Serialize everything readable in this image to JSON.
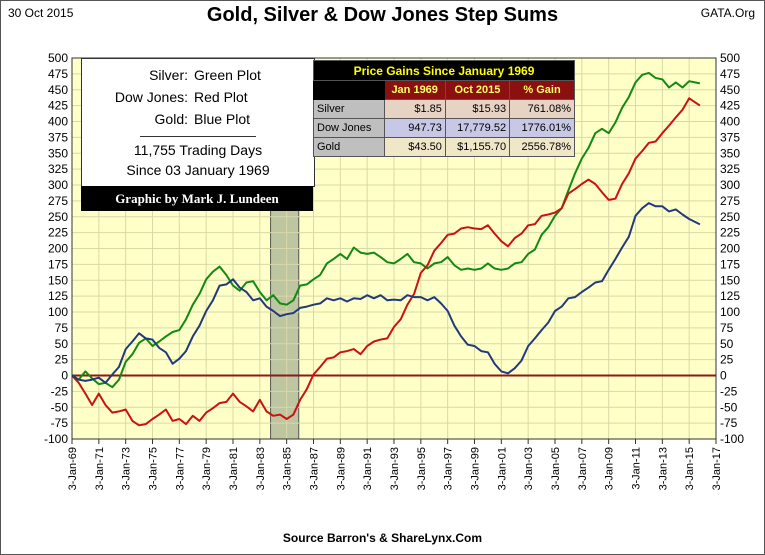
{
  "header": {
    "date": "30 Oct 2015",
    "title": "Gold, Silver & Dow Jones Step Sums",
    "site": "GATA.Org",
    "source": "Source Barron's & ShareLynx.Com"
  },
  "legend": {
    "rows": [
      {
        "name": "Silver:",
        "plot": "Green Plot"
      },
      {
        "name": "Dow Jones:",
        "plot": "Red Plot"
      },
      {
        "name": "Gold:",
        "plot": "Blue Plot"
      }
    ],
    "note_line1": "11,755 Trading Days",
    "note_line2": "Since 03 January 1969",
    "credit": "Graphic by Mark J. Lundeen"
  },
  "table": {
    "title": "Price Gains Since January 1969",
    "col1": "Jan 1969",
    "col2": "Oct 2015",
    "col3": "% Gain",
    "rows": [
      {
        "name": "Silver",
        "jan1969": "$1.85",
        "oct2015": "$15.93",
        "gain": "761.08%"
      },
      {
        "name": "Dow Jones",
        "jan1969": "947.73",
        "oct2015": "17,779.52",
        "gain": "1776.01%"
      },
      {
        "name": "Gold",
        "jan1969": "$43.50",
        "oct2015": "$1,155.70",
        "gain": "2556.78%"
      }
    ]
  },
  "colors": {
    "plot_bg": "#ffffc8",
    "grid": "#d9d9a8",
    "silver": "#118a11",
    "dow": "#cc1111",
    "gold": "#223a7a",
    "zero_line": "#8b1a1a",
    "highlight": "#9aa88a"
  },
  "chart_data": {
    "type": "line",
    "ylim": [
      -100,
      500
    ],
    "y_ticks": [
      -100,
      -75,
      -50,
      -25,
      0,
      25,
      50,
      75,
      100,
      125,
      150,
      175,
      200,
      225,
      250,
      275,
      300,
      325,
      350,
      375,
      400,
      425,
      450,
      475,
      500
    ],
    "x_ticks": [
      "3-Jan-69",
      "3-Jan-71",
      "3-Jan-73",
      "3-Jan-75",
      "3-Jan-77",
      "3-Jan-79",
      "3-Jan-81",
      "3-Jan-83",
      "3-Jan-85",
      "3-Jan-87",
      "3-Jan-89",
      "3-Jan-91",
      "3-Jan-93",
      "3-Jan-95",
      "3-Jan-97",
      "3-Jan-99",
      "3-Jan-01",
      "3-Jan-03",
      "3-Jan-05",
      "3-Jan-07",
      "3-Jan-09",
      "3-Jan-11",
      "3-Jan-13",
      "3-Jan-15",
      "3-Jan-17"
    ],
    "xlim": [
      1969,
      2017
    ],
    "highlight_span": [
      1983.8,
      1985.9
    ],
    "grid": true,
    "series": [
      {
        "key": "silver",
        "x": [
          1969,
          1969.5,
          1970,
          1970.5,
          1971,
          1971.5,
          1972,
          1972.5,
          1973,
          1973.5,
          1974,
          1974.5,
          1975,
          1975.5,
          1976,
          1976.5,
          1977,
          1977.5,
          1978,
          1978.5,
          1979,
          1979.5,
          1980,
          1980.5,
          1981,
          1981.5,
          1982,
          1982.5,
          1983,
          1983.5,
          1984,
          1984.5,
          1985,
          1985.5,
          1986,
          1986.5,
          1987,
          1987.5,
          1988,
          1988.5,
          1989,
          1989.5,
          1990,
          1990.5,
          1991,
          1991.5,
          1992,
          1992.5,
          1993,
          1993.5,
          1994,
          1994.5,
          1995,
          1995.5,
          1996,
          1996.5,
          1997,
          1997.5,
          1998,
          1998.5,
          1999,
          1999.5,
          2000,
          2000.5,
          2001,
          2001.5,
          2002,
          2002.5,
          2003,
          2003.5,
          2004,
          2004.5,
          2005,
          2005.5,
          2006,
          2006.5,
          2007,
          2007.5,
          2008,
          2008.5,
          2009,
          2009.5,
          2010,
          2010.5,
          2011,
          2011.5,
          2012,
          2012.5,
          2013,
          2013.5,
          2014,
          2014.5,
          2015,
          2015.8
        ],
        "y": [
          0,
          -5,
          5,
          -3,
          -15,
          -10,
          -20,
          -5,
          20,
          35,
          50,
          60,
          45,
          55,
          60,
          70,
          70,
          90,
          110,
          130,
          150,
          165,
          170,
          160,
          140,
          135,
          145,
          150,
          130,
          120,
          125,
          115,
          110,
          120,
          140,
          145,
          150,
          160,
          175,
          185,
          190,
          185,
          200,
          195,
          190,
          195,
          185,
          180,
          175,
          185,
          190,
          180,
          175,
          170,
          175,
          180,
          185,
          175,
          165,
          170,
          165,
          170,
          175,
          170,
          165,
          170,
          175,
          180,
          190,
          200,
          220,
          235,
          250,
          265,
          290,
          320,
          340,
          360,
          380,
          390,
          380,
          400,
          420,
          440,
          460,
          475,
          475,
          470,
          465,
          455,
          460,
          455,
          462,
          460
        ]
      },
      {
        "key": "dow",
        "x": [
          1969,
          1969.5,
          1970,
          1970.5,
          1971,
          1971.5,
          1972,
          1972.5,
          1973,
          1973.5,
          1974,
          1974.5,
          1975,
          1975.5,
          1976,
          1976.5,
          1977,
          1977.5,
          1978,
          1978.5,
          1979,
          1979.5,
          1980,
          1980.5,
          1981,
          1981.5,
          1982,
          1982.5,
          1983,
          1983.5,
          1984,
          1984.5,
          1985,
          1985.5,
          1986,
          1986.5,
          1987,
          1987.5,
          1988,
          1988.5,
          1989,
          1989.5,
          1990,
          1990.5,
          1991,
          1991.5,
          1992,
          1992.5,
          1993,
          1993.5,
          1994,
          1994.5,
          1995,
          1995.5,
          1996,
          1996.5,
          1997,
          1997.5,
          1998,
          1998.5,
          1999,
          1999.5,
          2000,
          2000.5,
          2001,
          2001.5,
          2002,
          2002.5,
          2003,
          2003.5,
          2004,
          2004.5,
          2005,
          2005.5,
          2006,
          2006.5,
          2007,
          2007.5,
          2008,
          2008.5,
          2009,
          2009.5,
          2010,
          2010.5,
          2011,
          2011.5,
          2012,
          2012.5,
          2013,
          2013.5,
          2014,
          2014.5,
          2015,
          2015.8
        ],
        "y": [
          0,
          -10,
          -30,
          -45,
          -30,
          -45,
          -60,
          -55,
          -55,
          -70,
          -80,
          -75,
          -70,
          -60,
          -55,
          -70,
          -70,
          -75,
          -65,
          -70,
          -60,
          -50,
          -45,
          -40,
          -30,
          -40,
          -50,
          -55,
          -40,
          -55,
          -65,
          -60,
          -70,
          -60,
          -40,
          -20,
          0,
          15,
          25,
          30,
          35,
          40,
          40,
          35,
          45,
          55,
          55,
          60,
          75,
          90,
          110,
          130,
          160,
          175,
          195,
          210,
          220,
          225,
          230,
          235,
          230,
          232,
          235,
          225,
          210,
          205,
          215,
          225,
          235,
          240,
          250,
          255,
          255,
          265,
          285,
          295,
          300,
          310,
          300,
          290,
          275,
          280,
          300,
          320,
          340,
          355,
          365,
          370,
          380,
          395,
          405,
          420,
          435,
          425
        ]
      },
      {
        "key": "gold",
        "x": [
          1969,
          1969.5,
          1970,
          1970.5,
          1971,
          1971.5,
          1972,
          1972.5,
          1973,
          1973.5,
          1974,
          1974.5,
          1975,
          1975.5,
          1976,
          1976.5,
          1977,
          1977.5,
          1978,
          1978.5,
          1979,
          1979.5,
          1980,
          1980.5,
          1981,
          1981.5,
          1982,
          1982.5,
          1983,
          1983.5,
          1984,
          1984.5,
          1985,
          1985.5,
          1986,
          1986.5,
          1987,
          1987.5,
          1988,
          1988.5,
          1989,
          1989.5,
          1990,
          1990.5,
          1991,
          1991.5,
          1992,
          1992.5,
          1993,
          1993.5,
          1994,
          1994.5,
          1995,
          1995.5,
          1996,
          1996.5,
          1997,
          1997.5,
          1998,
          1998.5,
          1999,
          1999.5,
          2000,
          2000.5,
          2001,
          2001.5,
          2002,
          2002.5,
          2003,
          2003.5,
          2004,
          2004.5,
          2005,
          2005.5,
          2006,
          2006.5,
          2007,
          2007.5,
          2008,
          2008.5,
          2009,
          2009.5,
          2010,
          2010.5,
          2011,
          2011.5,
          2012,
          2012.5,
          2013,
          2013.5,
          2014,
          2014.5,
          2015,
          2015.8
        ],
        "y": [
          0,
          -5,
          -10,
          -5,
          -5,
          -10,
          0,
          15,
          40,
          55,
          65,
          60,
          55,
          45,
          35,
          20,
          25,
          40,
          60,
          80,
          100,
          120,
          140,
          145,
          150,
          140,
          130,
          120,
          120,
          110,
          100,
          95,
          95,
          100,
          105,
          110,
          110,
          115,
          120,
          120,
          120,
          118,
          120,
          122,
          125,
          123,
          125,
          120,
          118,
          120,
          125,
          125,
          122,
          120,
          122,
          115,
          100,
          80,
          60,
          50,
          45,
          40,
          35,
          20,
          5,
          5,
          10,
          25,
          45,
          60,
          70,
          85,
          100,
          110,
          120,
          125,
          130,
          140,
          145,
          150,
          165,
          185,
          200,
          220,
          250,
          265,
          270,
          268,
          265,
          260,
          260,
          255,
          245,
          238
        ]
      }
    ]
  }
}
